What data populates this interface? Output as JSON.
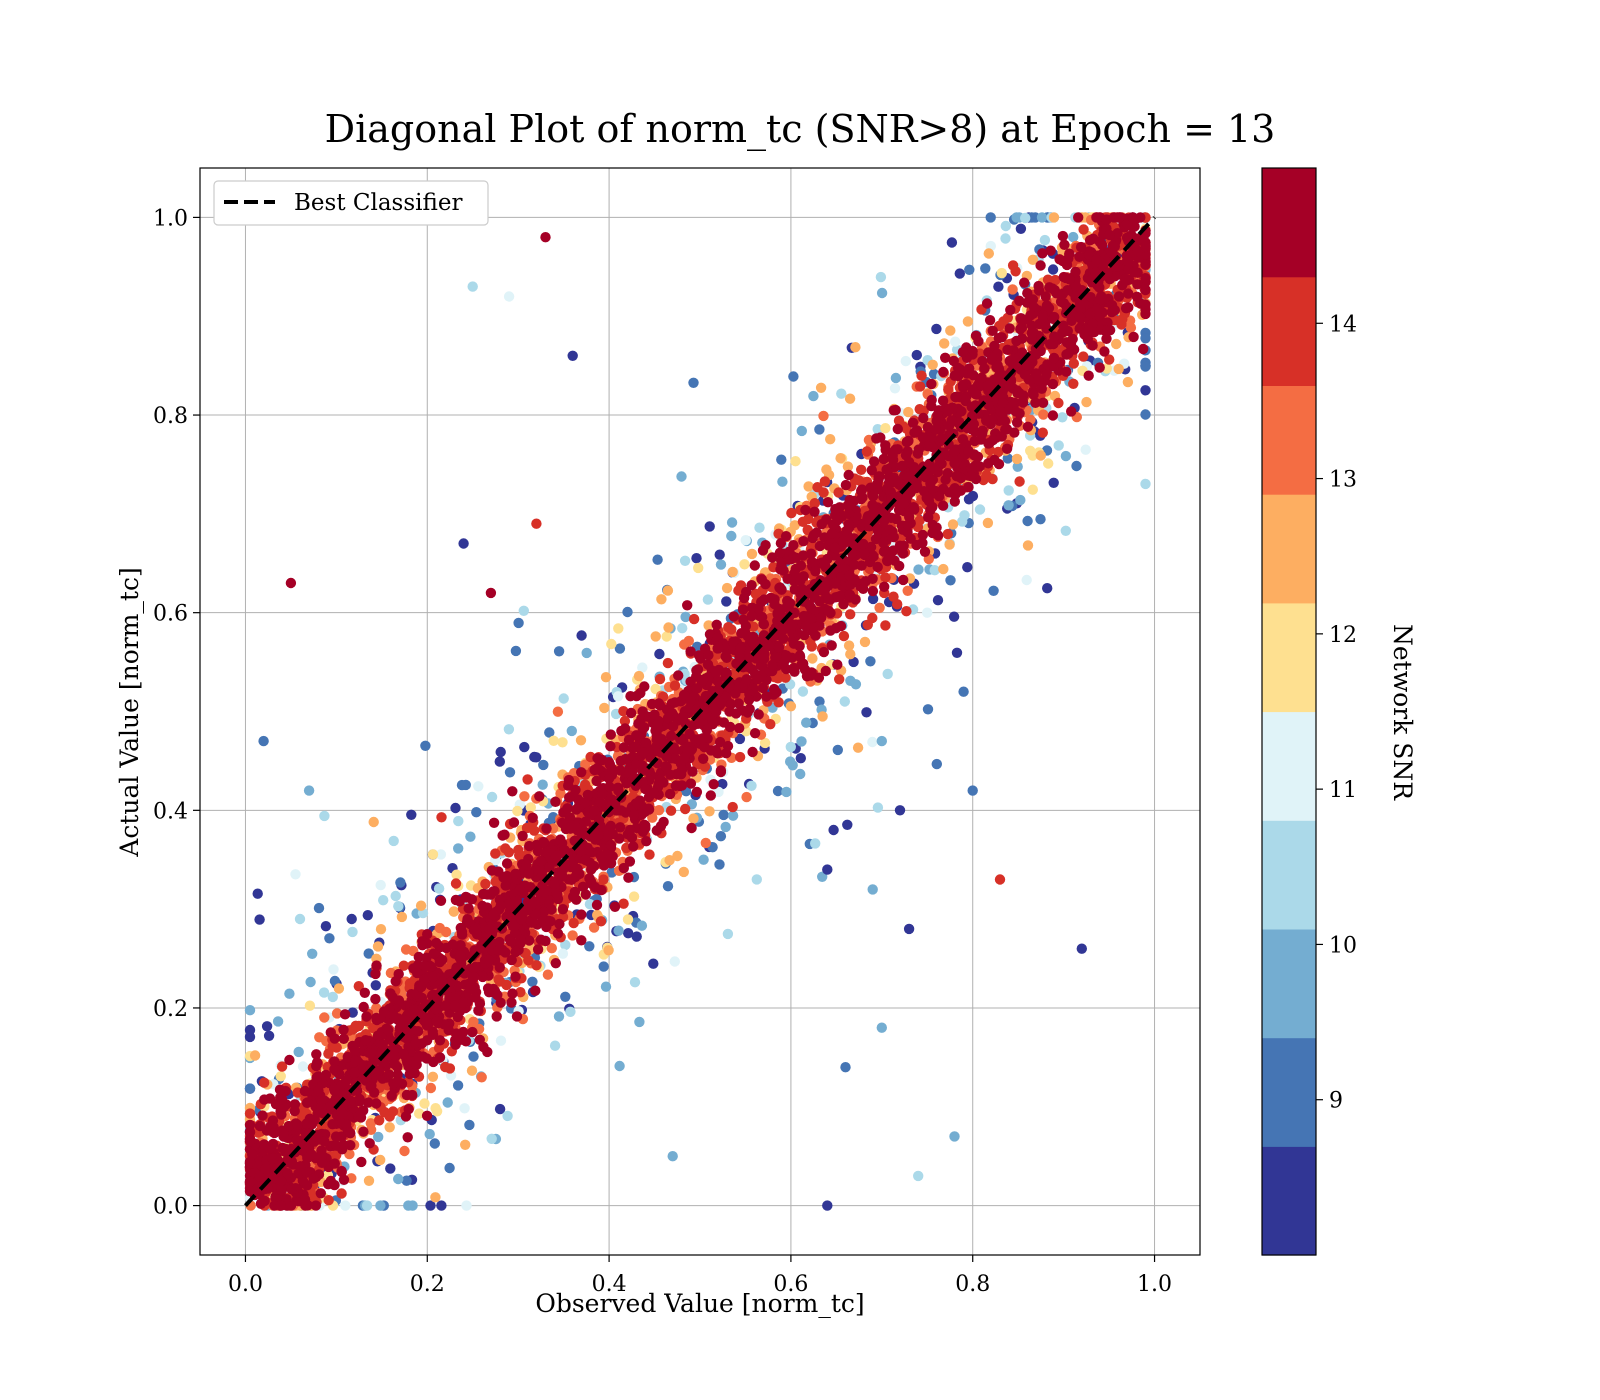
{
  "chart_data": {
    "type": "scatter",
    "title": "Diagonal Plot of norm_tc (SNR>8) at Epoch = 13",
    "xlabel": "Observed Value [norm_tc]",
    "ylabel": "Actual Value [norm_tc]",
    "xlim": [
      -0.05,
      1.05
    ],
    "ylim": [
      -0.05,
      1.05
    ],
    "xticks": [
      "0.0",
      "0.2",
      "0.4",
      "0.6",
      "0.8",
      "1.0"
    ],
    "yticks": [
      "0.0",
      "0.2",
      "0.4",
      "0.6",
      "0.8",
      "1.0"
    ],
    "grid": true,
    "legend": {
      "position": "upper-left",
      "entries": [
        {
          "label": "Best Classifier",
          "style": "black dashed line"
        }
      ]
    },
    "reference_line": {
      "label": "Best Classifier",
      "x": [
        0,
        1
      ],
      "y": [
        0,
        1
      ],
      "color": "#000000",
      "style": "dashed"
    },
    "colorbar": {
      "label": "Network SNR",
      "range": [
        8,
        15
      ],
      "ticks": [
        "9",
        "10",
        "11",
        "12",
        "13",
        "14"
      ],
      "tick_values": [
        9,
        10,
        11,
        12,
        13,
        14
      ],
      "colors": [
        "#313695",
        "#4575b4",
        "#74add1",
        "#abd9e9",
        "#e0f3f8",
        "#fee090",
        "#fdae61",
        "#f46d43",
        "#d73027",
        "#a50026"
      ]
    },
    "point_summary": {
      "note": "Thousands of points clustered along the diagonal; high-SNR points (dark red) tightly follow y = x, low-SNR points (blue) scatter further away.",
      "core_band_halfwidth": 0.06
    },
    "outliers": [
      {
        "x": 0.05,
        "y": 0.63,
        "snr": 14.8
      },
      {
        "x": 0.02,
        "y": 0.47,
        "snr": 9.2
      },
      {
        "x": 0.07,
        "y": 0.42,
        "snr": 9.8
      },
      {
        "x": 0.06,
        "y": 0.29,
        "snr": 10.2
      },
      {
        "x": 0.25,
        "y": 0.93,
        "snr": 10.2
      },
      {
        "x": 0.29,
        "y": 0.92,
        "snr": 10.8
      },
      {
        "x": 0.33,
        "y": 0.98,
        "snr": 14.8
      },
      {
        "x": 0.36,
        "y": 0.86,
        "snr": 8.3
      },
      {
        "x": 0.32,
        "y": 0.69,
        "snr": 13.9
      },
      {
        "x": 0.24,
        "y": 0.67,
        "snr": 8.3
      },
      {
        "x": 0.27,
        "y": 0.62,
        "snr": 14.8
      },
      {
        "x": 0.83,
        "y": 0.33,
        "snr": 13.9
      },
      {
        "x": 0.92,
        "y": 0.26,
        "snr": 8.3
      },
      {
        "x": 0.79,
        "y": 0.52,
        "snr": 9.2
      },
      {
        "x": 0.8,
        "y": 0.42,
        "snr": 9.2
      },
      {
        "x": 0.72,
        "y": 0.4,
        "snr": 8.3
      },
      {
        "x": 0.73,
        "y": 0.28,
        "snr": 8.3
      },
      {
        "x": 0.7,
        "y": 0.18,
        "snr": 9.8
      },
      {
        "x": 0.78,
        "y": 0.07,
        "snr": 9.8
      },
      {
        "x": 0.74,
        "y": 0.03,
        "snr": 10.5
      },
      {
        "x": 0.64,
        "y": 0.0,
        "snr": 8.3
      },
      {
        "x": 0.69,
        "y": 0.32,
        "snr": 9.8
      },
      {
        "x": 0.64,
        "y": 0.34,
        "snr": 8.3
      },
      {
        "x": 0.66,
        "y": 0.14,
        "snr": 9.2
      },
      {
        "x": 0.7,
        "y": 0.47,
        "snr": 9.8
      },
      {
        "x": 0.47,
        "y": 0.05,
        "snr": 9.8
      }
    ]
  }
}
